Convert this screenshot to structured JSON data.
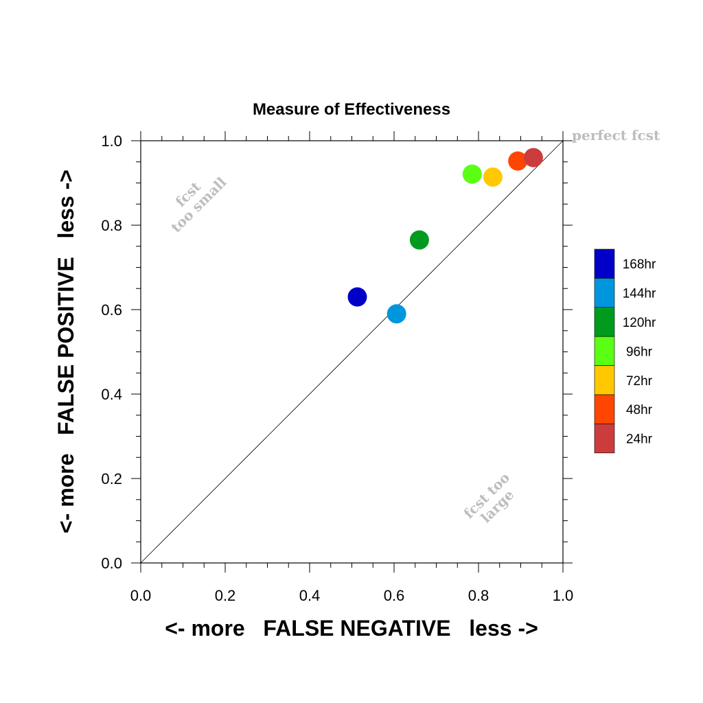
{
  "chart_data": {
    "type": "scatter",
    "title": "Measure of Effectiveness",
    "xlabel": "<- more   FALSE NEGATIVE   less ->",
    "ylabel": "<- more   FALSE POSITIVE   less ->",
    "xlim": [
      0.0,
      1.0
    ],
    "ylim": [
      0.0,
      1.0
    ],
    "xticks": [
      "0.0",
      "0.2",
      "0.4",
      "0.6",
      "0.8",
      "1.0"
    ],
    "yticks": [
      "0.0",
      "0.2",
      "0.4",
      "0.6",
      "0.8",
      "1.0"
    ],
    "grid": false,
    "diagonal_line": true,
    "legend_placement": "right",
    "series": [
      {
        "name": "168hr",
        "color": "#0000c8",
        "x": [
          0.513
        ],
        "y": [
          0.63
        ]
      },
      {
        "name": "144hr",
        "color": "#0096de",
        "x": [
          0.606
        ],
        "y": [
          0.59
        ]
      },
      {
        "name": "120hr",
        "color": "#009b1e",
        "x": [
          0.66
        ],
        "y": [
          0.765
        ]
      },
      {
        "name": "96hr",
        "color": "#5aff14",
        "x": [
          0.785
        ],
        "y": [
          0.921
        ]
      },
      {
        "name": "72hr",
        "color": "#ffc800",
        "x": [
          0.834
        ],
        "y": [
          0.914
        ]
      },
      {
        "name": "48hr",
        "color": "#ff4600",
        "x": [
          0.893
        ],
        "y": [
          0.952
        ]
      },
      {
        "name": "24hr",
        "color": "#cd3c3c",
        "x": [
          0.93
        ],
        "y": [
          0.96
        ]
      }
    ],
    "annotations": {
      "perfect": "perfect fcst",
      "too_small_1": "fcst",
      "too_small_2": "too small",
      "too_large_1": "fcst too",
      "too_large_2": "large"
    }
  }
}
